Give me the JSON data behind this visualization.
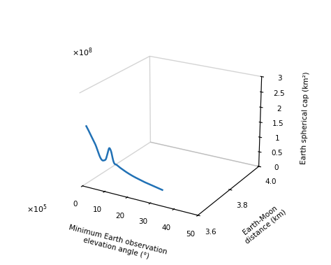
{
  "xlabel": "Minimum Earth observation\nelevation angle (°)",
  "ylabel": "Earth-Moon\ndistance (km)",
  "zlabel": "Earth spherical cap (km²)",
  "xlim": [
    0,
    50
  ],
  "ylim": [
    3.6,
    4.0
  ],
  "zlim": [
    0,
    3
  ],
  "xticks": [
    0,
    10,
    20,
    30,
    40,
    50
  ],
  "yticks": [
    3.6,
    3.8,
    4.0
  ],
  "ztick_labels": [
    "0",
    "0.5",
    "1",
    "1.5",
    "2",
    "2.5",
    "3"
  ],
  "ztick_vals": [
    0,
    0.5,
    1.0,
    1.5,
    2.0,
    2.5,
    3.0
  ],
  "line_color": "#2171b5",
  "line_width": 1.8,
  "background_color": "#ffffff",
  "elev": 22,
  "azim": -60,
  "curve_x": [
    0,
    1,
    2,
    3,
    4,
    5,
    5.5,
    6,
    6.5,
    7,
    7.5,
    8,
    8.5,
    9,
    9.5,
    10,
    10.5,
    11,
    11.5,
    12,
    13,
    14,
    15,
    17,
    19,
    21,
    23,
    25,
    27,
    29,
    31,
    33
  ],
  "curve_z": [
    1.85,
    1.72,
    1.58,
    1.44,
    1.3,
    1.1,
    1.0,
    0.92,
    0.87,
    0.85,
    0.86,
    0.88,
    0.93,
    1.05,
    1.18,
    1.3,
    1.28,
    1.18,
    1.0,
    0.87,
    0.82,
    0.78,
    0.74,
    0.67,
    0.61,
    0.56,
    0.52,
    0.48,
    0.45,
    0.42,
    0.39,
    0.36
  ],
  "curve_y_val": 3.63,
  "y_multiplier_label": "×10⁵",
  "z_multiplier_label": "×10⁸"
}
